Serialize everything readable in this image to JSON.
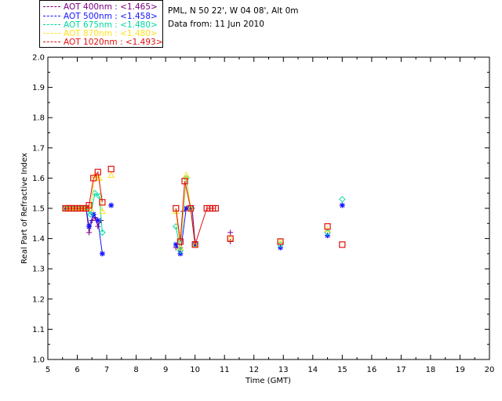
{
  "header": {
    "site_line": "PML, N 50 22', W 04 08', Alt 0m",
    "date_line": "Data from: 11 Jun 2010"
  },
  "legend": [
    {
      "label": "AOT  400nm : <1.465>",
      "color": "#7a0080"
    },
    {
      "label": "AOT  500nm : <1.458>",
      "color": "#1515ff"
    },
    {
      "label": "AOT  675nm : <1.480>",
      "color": "#00d8a0"
    },
    {
      "label": "AOT  870nm : <1.480>",
      "color": "#ffe020"
    },
    {
      "label": "AOT 1020nm : <1.493>",
      "color": "#e01010"
    }
  ],
  "chart_data": {
    "type": "scatter",
    "title": "",
    "xlabel": "Time (GMT)",
    "ylabel": "Real Part of Refractive Index",
    "xlim": [
      5,
      20
    ],
    "ylim": [
      1.0,
      2.0
    ],
    "xticks": [
      "5",
      "6",
      "7",
      "8",
      "9",
      "10",
      "11",
      "12",
      "13",
      "14",
      "15",
      "16",
      "17",
      "18",
      "19",
      "20"
    ],
    "yticks": [
      "1.0",
      "1.1",
      "1.2",
      "1.3",
      "1.4",
      "1.5",
      "1.6",
      "1.7",
      "1.8",
      "1.9",
      "2.0"
    ],
    "series": [
      {
        "name": "AOT 400nm",
        "color": "#7a0080",
        "marker": "plus",
        "segments": [
          [
            [
              5.6,
              1.5
            ],
            [
              5.7,
              1.5
            ],
            [
              5.8,
              1.5
            ],
            [
              5.9,
              1.5
            ],
            [
              6.0,
              1.5
            ],
            [
              6.1,
              1.5
            ],
            [
              6.2,
              1.5
            ],
            [
              6.3,
              1.5
            ],
            [
              6.4,
              1.42
            ],
            [
              6.5,
              1.46
            ],
            [
              6.6,
              1.47
            ],
            [
              6.7,
              1.44
            ],
            [
              6.8,
              1.46
            ]
          ],
          [
            [
              9.35,
              1.37
            ],
            [
              9.5,
              1.37
            ],
            [
              9.6,
              1.49
            ],
            [
              9.75,
              1.5
            ],
            [
              9.9,
              1.5
            ],
            [
              10.0,
              1.39
            ]
          ]
        ],
        "isolated": [
          [
            11.2,
            1.39
          ],
          [
            11.2,
            1.42
          ]
        ]
      },
      {
        "name": "AOT 500nm",
        "color": "#1515ff",
        "marker": "asterisk",
        "segments": [
          [
            [
              5.6,
              1.5
            ],
            [
              5.7,
              1.5
            ],
            [
              5.8,
              1.5
            ],
            [
              5.9,
              1.5
            ],
            [
              6.0,
              1.5
            ],
            [
              6.1,
              1.5
            ],
            [
              6.2,
              1.5
            ],
            [
              6.3,
              1.5
            ],
            [
              6.4,
              1.44
            ],
            [
              6.55,
              1.48
            ],
            [
              6.7,
              1.46
            ],
            [
              6.85,
              1.35
            ]
          ],
          [
            [
              9.35,
              1.38
            ],
            [
              9.5,
              1.35
            ],
            [
              9.7,
              1.5
            ],
            [
              9.85,
              1.5
            ],
            [
              10.0,
              1.38
            ]
          ]
        ],
        "isolated": [
          [
            7.15,
            1.51
          ],
          [
            12.9,
            1.37
          ],
          [
            14.5,
            1.41
          ],
          [
            15.0,
            1.51
          ]
        ]
      },
      {
        "name": "AOT 675nm",
        "color": "#00d8a0",
        "marker": "diamond",
        "segments": [
          [
            [
              5.6,
              1.5
            ],
            [
              5.7,
              1.5
            ],
            [
              5.8,
              1.5
            ],
            [
              5.9,
              1.5
            ],
            [
              6.0,
              1.5
            ],
            [
              6.1,
              1.5
            ],
            [
              6.2,
              1.5
            ],
            [
              6.3,
              1.5
            ],
            [
              6.45,
              1.48
            ],
            [
              6.6,
              1.55
            ],
            [
              6.75,
              1.54
            ],
            [
              6.85,
              1.42
            ]
          ],
          [
            [
              9.35,
              1.44
            ],
            [
              9.5,
              1.36
            ],
            [
              9.7,
              1.6
            ],
            [
              9.85,
              1.5
            ],
            [
              10.0,
              1.38
            ]
          ]
        ],
        "isolated": [
          [
            12.9,
            1.38
          ],
          [
            14.5,
            1.42
          ],
          [
            15.0,
            1.53
          ]
        ]
      },
      {
        "name": "AOT 870nm",
        "color": "#ffe020",
        "marker": "triangle",
        "segments": [
          [
            [
              5.6,
              1.5
            ],
            [
              5.7,
              1.5
            ],
            [
              5.8,
              1.5
            ],
            [
              5.9,
              1.5
            ],
            [
              6.0,
              1.5
            ],
            [
              6.1,
              1.5
            ],
            [
              6.2,
              1.5
            ],
            [
              6.3,
              1.5
            ],
            [
              6.45,
              1.5
            ],
            [
              6.6,
              1.61
            ],
            [
              6.75,
              1.6
            ],
            [
              6.85,
              1.49
            ]
          ],
          [
            [
              9.35,
              1.49
            ],
            [
              9.5,
              1.37
            ],
            [
              9.7,
              1.61
            ],
            [
              9.85,
              1.5
            ],
            [
              10.0,
              1.38
            ]
          ]
        ],
        "isolated": [
          [
            7.15,
            1.61
          ],
          [
            11.2,
            1.4
          ],
          [
            12.9,
            1.39
          ],
          [
            14.5,
            1.43
          ]
        ]
      },
      {
        "name": "AOT 1020nm",
        "color": "#e01010",
        "marker": "square",
        "segments": [
          [
            [
              5.6,
              1.5
            ],
            [
              5.7,
              1.5
            ],
            [
              5.8,
              1.5
            ],
            [
              5.9,
              1.5
            ],
            [
              6.0,
              1.5
            ],
            [
              6.1,
              1.5
            ],
            [
              6.2,
              1.5
            ],
            [
              6.3,
              1.5
            ],
            [
              6.4,
              1.51
            ],
            [
              6.55,
              1.6
            ],
            [
              6.7,
              1.62
            ],
            [
              6.85,
              1.52
            ]
          ],
          [
            [
              9.35,
              1.5
            ],
            [
              9.5,
              1.39
            ],
            [
              9.65,
              1.59
            ],
            [
              9.85,
              1.5
            ],
            [
              10.0,
              1.38
            ],
            [
              10.4,
              1.5
            ],
            [
              10.5,
              1.5
            ],
            [
              10.6,
              1.5
            ],
            [
              10.7,
              1.5
            ]
          ]
        ],
        "isolated": [
          [
            7.15,
            1.63
          ],
          [
            11.2,
            1.4
          ],
          [
            12.9,
            1.39
          ],
          [
            14.5,
            1.44
          ],
          [
            15.0,
            1.38
          ]
        ]
      }
    ]
  }
}
